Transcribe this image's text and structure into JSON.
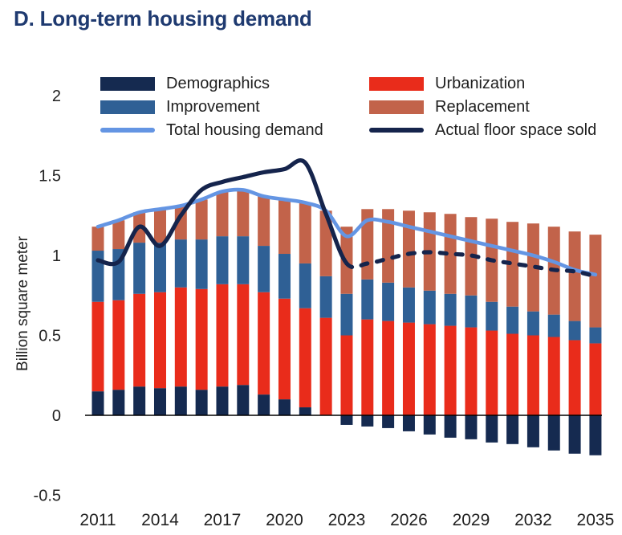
{
  "title": "D. Long-term housing demand",
  "colors": {
    "demographics": "#152A50",
    "urbanization": "#E92C1B",
    "improvement": "#2F6095",
    "replacement": "#C2634A",
    "total_line": "#6495E3",
    "actual_line": "#15244C",
    "axis_line": "#000000",
    "tick_text": "#212121",
    "title_text": "#1F3A70"
  },
  "legend": [
    {
      "label": "Demographics",
      "swatch": "bar",
      "color": "demographics"
    },
    {
      "label": "Urbanization",
      "swatch": "bar",
      "color": "urbanization"
    },
    {
      "label": "Improvement",
      "swatch": "bar",
      "color": "improvement"
    },
    {
      "label": "Replacement",
      "swatch": "bar",
      "color": "replacement"
    },
    {
      "label": "Total housing demand",
      "swatch": "line",
      "color": "total_line"
    },
    {
      "label": "Actual floor space sold",
      "swatch": "line",
      "color": "actual_line"
    }
  ],
  "chart_data": {
    "type": "combo-stacked-bar-line",
    "title": "D. Long-term housing demand",
    "ylabel": "Billion square meter",
    "xlabel": "",
    "grid": false,
    "legend_position": "top",
    "ylim": [
      -0.65,
      2.1
    ],
    "yticks": [
      2,
      1.5,
      1,
      0.5,
      0,
      -0.5
    ],
    "ytick_labels": [
      "2",
      "1.5",
      "1",
      "0.5",
      "0",
      "-0.5"
    ],
    "xtick_labels": [
      "2011",
      "2014",
      "2017",
      "2020",
      "2023",
      "2026",
      "2029",
      "2032",
      "2035"
    ],
    "categories": [
      2011,
      2012,
      2013,
      2014,
      2015,
      2016,
      2017,
      2018,
      2019,
      2020,
      2021,
      2022,
      2023,
      2024,
      2025,
      2026,
      2027,
      2028,
      2029,
      2030,
      2031,
      2032,
      2033,
      2034,
      2035
    ],
    "series": [
      {
        "key": "demographics",
        "name": "Demographics",
        "type": "bar",
        "color": "demographics",
        "values": [
          0.15,
          0.16,
          0.18,
          0.17,
          0.18,
          0.16,
          0.18,
          0.19,
          0.13,
          0.1,
          0.05,
          0.0,
          -0.06,
          -0.07,
          -0.08,
          -0.1,
          -0.12,
          -0.14,
          -0.15,
          -0.17,
          -0.18,
          -0.2,
          -0.22,
          -0.24,
          -0.25
        ]
      },
      {
        "key": "urbanization",
        "name": "Urbanization",
        "type": "bar",
        "color": "urbanization",
        "values": [
          0.56,
          0.56,
          0.58,
          0.6,
          0.62,
          0.63,
          0.64,
          0.63,
          0.64,
          0.63,
          0.62,
          0.61,
          0.5,
          0.6,
          0.59,
          0.58,
          0.57,
          0.56,
          0.55,
          0.53,
          0.51,
          0.5,
          0.49,
          0.47,
          0.45
        ]
      },
      {
        "key": "improvement",
        "name": "Improvement",
        "type": "bar",
        "color": "improvement",
        "values": [
          0.32,
          0.32,
          0.32,
          0.31,
          0.3,
          0.31,
          0.3,
          0.3,
          0.29,
          0.28,
          0.28,
          0.26,
          0.26,
          0.25,
          0.24,
          0.22,
          0.21,
          0.2,
          0.2,
          0.18,
          0.17,
          0.15,
          0.14,
          0.12,
          0.1
        ]
      },
      {
        "key": "replacement",
        "name": "Replacement",
        "type": "bar",
        "color": "replacement",
        "values": [
          0.15,
          0.18,
          0.19,
          0.21,
          0.21,
          0.25,
          0.28,
          0.29,
          0.31,
          0.34,
          0.38,
          0.41,
          0.42,
          0.44,
          0.46,
          0.48,
          0.49,
          0.5,
          0.49,
          0.52,
          0.53,
          0.55,
          0.55,
          0.56,
          0.58
        ]
      },
      {
        "key": "total",
        "name": "Total housing demand",
        "type": "line",
        "color": "total_line",
        "values": [
          1.18,
          1.22,
          1.27,
          1.29,
          1.31,
          1.35,
          1.4,
          1.41,
          1.37,
          1.35,
          1.33,
          1.28,
          1.12,
          1.22,
          1.21,
          1.18,
          1.15,
          1.12,
          1.09,
          1.06,
          1.03,
          1.0,
          0.96,
          0.91,
          0.88
        ]
      },
      {
        "key": "actual",
        "name": "Actual floor space sold",
        "type": "line",
        "color": "actual_line",
        "style": {
          "solid_through": 2023,
          "dashed_after": 2023
        },
        "values": [
          0.97,
          0.96,
          1.18,
          1.06,
          1.25,
          1.41,
          1.46,
          1.49,
          1.52,
          1.54,
          1.58,
          1.26,
          0.95,
          0.95,
          0.98,
          1.01,
          1.02,
          1.01,
          1.0,
          0.97,
          0.95,
          0.93,
          0.91,
          0.9,
          0.87
        ]
      }
    ]
  }
}
